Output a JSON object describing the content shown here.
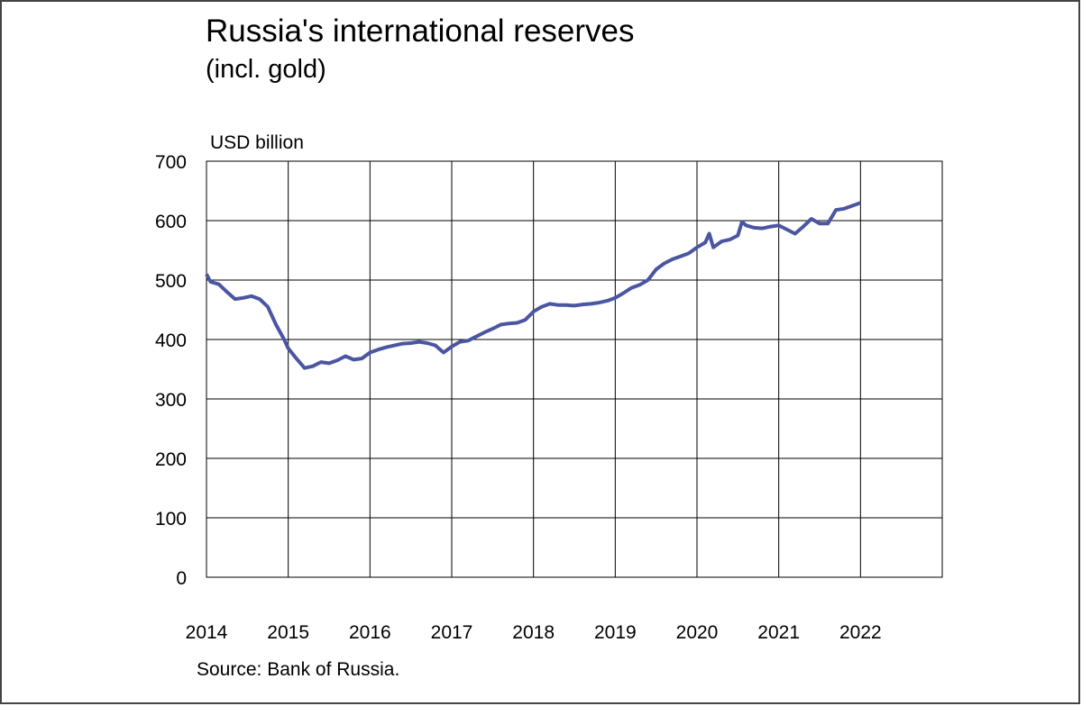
{
  "chart_data": {
    "type": "line",
    "title": "Russia's international reserves",
    "subtitle": "(incl. gold)",
    "y_label": "USD billion",
    "source": "Source: Bank of Russia.",
    "x": [
      2014.0,
      2014.05,
      2014.15,
      2014.25,
      2014.35,
      2014.45,
      2014.55,
      2014.65,
      2014.75,
      2014.85,
      2014.95,
      2015.0,
      2015.1,
      2015.2,
      2015.3,
      2015.4,
      2015.5,
      2015.6,
      2015.7,
      2015.8,
      2015.9,
      2016.0,
      2016.1,
      2016.2,
      2016.3,
      2016.4,
      2016.5,
      2016.6,
      2016.7,
      2016.8,
      2016.9,
      2017.0,
      2017.1,
      2017.2,
      2017.3,
      2017.4,
      2017.5,
      2017.6,
      2017.7,
      2017.8,
      2017.9,
      2018.0,
      2018.1,
      2018.2,
      2018.3,
      2018.4,
      2018.5,
      2018.6,
      2018.7,
      2018.8,
      2018.9,
      2019.0,
      2019.1,
      2019.2,
      2019.3,
      2019.4,
      2019.5,
      2019.6,
      2019.7,
      2019.8,
      2019.9,
      2020.0,
      2020.1,
      2020.15,
      2020.2,
      2020.3,
      2020.4,
      2020.5,
      2020.55,
      2020.6,
      2020.7,
      2020.8,
      2020.9,
      2021.0,
      2021.1,
      2021.2,
      2021.3,
      2021.4,
      2021.5,
      2021.6,
      2021.7,
      2021.8,
      2021.9,
      2022.0
    ],
    "series": [
      {
        "name": "Reserves",
        "color": "#4b56a3",
        "values": [
          510,
          497,
          493,
          480,
          468,
          470,
          473,
          468,
          455,
          425,
          400,
          385,
          368,
          352,
          355,
          362,
          360,
          365,
          372,
          366,
          368,
          378,
          383,
          387,
          390,
          393,
          394,
          396,
          394,
          390,
          378,
          388,
          396,
          398,
          405,
          412,
          418,
          425,
          427,
          428,
          433,
          447,
          455,
          460,
          458,
          458,
          457,
          459,
          460,
          462,
          465,
          470,
          478,
          487,
          492,
          500,
          518,
          528,
          535,
          540,
          545,
          555,
          563,
          578,
          555,
          565,
          568,
          575,
          598,
          592,
          588,
          587,
          590,
          592,
          585,
          578,
          590,
          603,
          595,
          595,
          618,
          620,
          625,
          630
        ]
      }
    ],
    "xlim": [
      2014,
      2023
    ],
    "xticks": [
      2014,
      2015,
      2016,
      2017,
      2018,
      2019,
      2020,
      2021,
      2022
    ],
    "ylim": [
      0,
      700
    ],
    "yticks": [
      0,
      100,
      200,
      300,
      400,
      500,
      600,
      700
    ],
    "grid": true
  }
}
